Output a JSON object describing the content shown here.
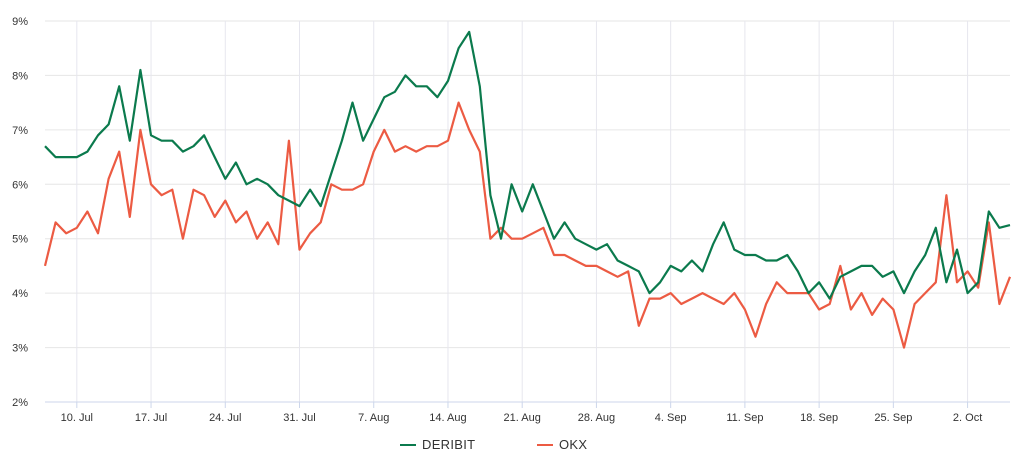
{
  "chart_data": {
    "type": "line",
    "title": "",
    "xlabel": "",
    "ylabel": "",
    "x_unit": "days since 7 Jul",
    "xlim": [
      0,
      91
    ],
    "ylim": [
      2,
      9
    ],
    "y_ticks": [
      2,
      3,
      4,
      5,
      6,
      7,
      8,
      9
    ],
    "y_tick_labels": [
      "2%",
      "3%",
      "4%",
      "5%",
      "6%",
      "7%",
      "8%",
      "9%"
    ],
    "x_ticks": [
      3,
      10,
      17,
      24,
      31,
      38,
      45,
      52,
      59,
      66,
      73,
      80,
      87
    ],
    "x_tick_labels": [
      "10. Jul",
      "17. Jul",
      "24. Jul",
      "31. Jul",
      "7. Aug",
      "14. Aug",
      "21. Aug",
      "28. Aug",
      "4. Sep",
      "11. Sep",
      "18. Sep",
      "25. Sep",
      "2. Oct"
    ],
    "grid": true,
    "legend_position": "bottom-center",
    "series": [
      {
        "name": "DERIBIT",
        "color": "#0b7a4d",
        "values": [
          6.7,
          6.5,
          6.5,
          6.5,
          6.6,
          6.9,
          7.1,
          7.8,
          6.8,
          8.1,
          6.9,
          6.8,
          6.8,
          6.6,
          6.7,
          6.9,
          6.5,
          6.1,
          6.4,
          6.0,
          6.1,
          6.0,
          5.8,
          5.7,
          5.6,
          5.9,
          5.6,
          6.2,
          6.8,
          7.5,
          6.8,
          7.2,
          7.6,
          7.7,
          8.0,
          7.8,
          7.8,
          7.6,
          7.9,
          8.5,
          8.8,
          7.8,
          5.8,
          5.0,
          6.0,
          5.5,
          6.0,
          5.5,
          5.0,
          5.3,
          5.0,
          4.9,
          4.8,
          4.9,
          4.6,
          4.5,
          4.4,
          4.0,
          4.2,
          4.5,
          4.4,
          4.6,
          4.4,
          4.9,
          5.3,
          4.8,
          4.7,
          4.7,
          4.6,
          4.6,
          4.7,
          4.4,
          4.0,
          4.2,
          3.9,
          4.3,
          4.4,
          4.5,
          4.5,
          4.3,
          4.4,
          4.0,
          4.4,
          4.7,
          5.2,
          4.2,
          4.8,
          4.0,
          4.2,
          5.5,
          5.2,
          5.25
        ]
      },
      {
        "name": "OKX",
        "color": "#ec5b43",
        "values": [
          4.5,
          5.3,
          5.1,
          5.2,
          5.5,
          5.1,
          6.1,
          6.6,
          5.4,
          7.0,
          6.0,
          5.8,
          5.9,
          5.0,
          5.9,
          5.8,
          5.4,
          5.7,
          5.3,
          5.5,
          5.0,
          5.3,
          4.9,
          6.8,
          4.8,
          5.1,
          5.3,
          6.0,
          5.9,
          5.9,
          6.0,
          6.6,
          7.0,
          6.6,
          6.7,
          6.6,
          6.7,
          6.7,
          6.8,
          7.5,
          7.0,
          6.6,
          5.0,
          5.2,
          5.0,
          5.0,
          5.1,
          5.2,
          4.7,
          4.7,
          4.6,
          4.5,
          4.5,
          4.4,
          4.3,
          4.4,
          3.4,
          3.9,
          3.9,
          4.0,
          3.8,
          3.9,
          4.0,
          3.9,
          3.8,
          4.0,
          3.7,
          3.2,
          3.8,
          4.2,
          4.0,
          4.0,
          4.0,
          3.7,
          3.8,
          4.5,
          3.7,
          4.0,
          3.6,
          3.9,
          3.7,
          3.0,
          3.8,
          4.0,
          4.2,
          5.8,
          4.2,
          4.4,
          4.1,
          5.3,
          3.8,
          4.3
        ]
      }
    ]
  }
}
